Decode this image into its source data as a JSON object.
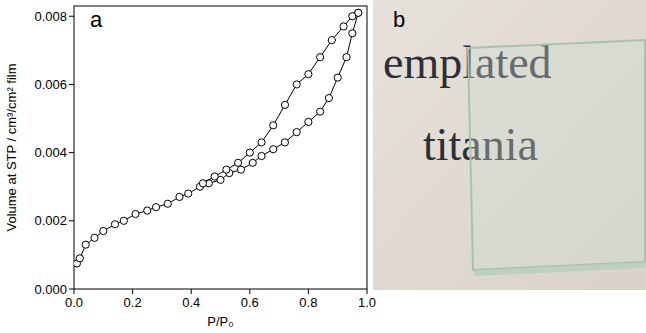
{
  "chart_data": {
    "type": "line",
    "x_label": "P/P₀",
    "y_label": "Volume at STP / cm³/cm² film",
    "xlim": [
      0,
      1.0
    ],
    "xticks": [
      {
        "value": 0,
        "label": "0.0"
      },
      0.2,
      0.4,
      0.6,
      0.8,
      {
        "value": 1,
        "label": "1.0"
      }
    ],
    "ylim": [
      0,
      0.0083
    ],
    "yticks": [
      {
        "value": 0,
        "label": "0.000"
      },
      0.002,
      0.004,
      0.006,
      0.008
    ],
    "marker": "circle",
    "grid": false,
    "series": [
      {
        "color": "#000000",
        "x": [
          0.01,
          0.02,
          0.04,
          0.07,
          0.1,
          0.14,
          0.17,
          0.21,
          0.25,
          0.28,
          0.32,
          0.36,
          0.39,
          0.43,
          0.46,
          0.5,
          0.53,
          0.57,
          0.61,
          0.64,
          0.68,
          0.72,
          0.76,
          0.8,
          0.84,
          0.87,
          0.9,
          0.93,
          0.95,
          0.97
        ],
        "values": [
          0.00075,
          0.0009,
          0.0013,
          0.0015,
          0.0017,
          0.0019,
          0.002,
          0.0022,
          0.0023,
          0.0024,
          0.0025,
          0.0027,
          0.0028,
          0.003,
          0.0031,
          0.0032,
          0.0034,
          0.0035,
          0.0037,
          0.0039,
          0.0041,
          0.0043,
          0.0046,
          0.0049,
          0.0052,
          0.0056,
          0.0062,
          0.0068,
          0.0075,
          0.0081
        ]
      },
      {
        "color": "#000000",
        "x": [
          0.97,
          0.95,
          0.92,
          0.88,
          0.84,
          0.8,
          0.76,
          0.72,
          0.68,
          0.64,
          0.6,
          0.56,
          0.52,
          0.48,
          0.44
        ],
        "values": [
          0.0081,
          0.008,
          0.0077,
          0.0073,
          0.0068,
          0.0063,
          0.006,
          0.0054,
          0.0048,
          0.0043,
          0.004,
          0.0037,
          0.0035,
          0.0033,
          0.0031
        ]
      }
    ]
  },
  "panel_labels": [
    "a",
    "b"
  ],
  "photo": {
    "lines": [
      "emplated",
      "titania"
    ]
  }
}
